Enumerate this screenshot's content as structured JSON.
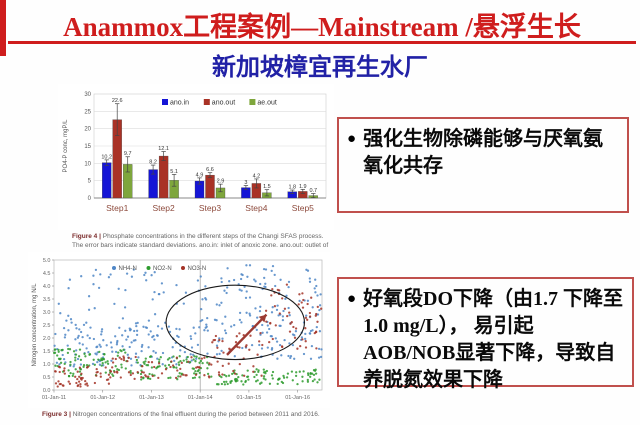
{
  "slide": {
    "title": "Anammox工程案例—Mainstream /悬浮生长",
    "subtitle": "新加坡樟宜再生水厂",
    "accent_color": "#cf1d1d",
    "subtitle_color": "#2121a6",
    "note_border_color": "#c0504d"
  },
  "bullets": [
    {
      "marker": "●",
      "text": "强化生物除磷能够与厌氧氨氧化共存"
    },
    {
      "marker": "●",
      "text": "好氧段DO下降（由1.7 下降至1.0 mg/L）， 易引起AOB/NOB显著下降，导致自养脱氮效果下降"
    }
  ],
  "chart_data": [
    {
      "type": "bar",
      "title": "",
      "xlabel": "",
      "ylabel": "PO4-P conc, mgP/L",
      "ylim": [
        0,
        30
      ],
      "yticks": [
        0,
        5,
        10,
        15,
        20,
        25,
        30
      ],
      "categories": [
        "Step1",
        "Step2",
        "Step3",
        "Step4",
        "Step5"
      ],
      "series": [
        {
          "name": "ano.in",
          "color": "#1515d6",
          "values": [
            10.2,
            8.2,
            4.9,
            3.0,
            1.8
          ],
          "errors": [
            0.8,
            1.3,
            0.9,
            0.6,
            0.5
          ]
        },
        {
          "name": "ano.out",
          "color": "#a93226",
          "values": [
            22.6,
            12.1,
            6.6,
            4.2,
            1.9
          ],
          "errors": [
            4.6,
            1.3,
            0.7,
            1.3,
            0.6
          ]
        },
        {
          "name": "ae.out",
          "color": "#7ea63c",
          "values": [
            9.7,
            5.1,
            2.9,
            1.5,
            0.7
          ],
          "errors": [
            2.2,
            1.7,
            1.1,
            0.9,
            0.6
          ]
        }
      ],
      "data_labels": [
        [
          "10.2",
          "8.2",
          "4.9",
          "3",
          "1.8"
        ],
        [
          "22.6",
          "12.1",
          "6.6",
          "4.2",
          "1.9"
        ],
        [
          "9.7",
          "5.1",
          "2.9",
          "1.5",
          "0.7"
        ]
      ],
      "legend_position": "top",
      "grid": true,
      "caption_label": "Figure 4 |",
      "caption_text": "Phosphate concentrations in the different steps of the Changi SFAS process. The error bars indicate standard deviations. ano.in: inlet of anoxic zone. ano.out: outlet of anoxic zone. ae.out: outlet of aerobic zone."
    },
    {
      "type": "scatter",
      "title": "",
      "xlabel": "",
      "ylabel": "Nitrogen concentration, mg N/L",
      "ylim": [
        0,
        5
      ],
      "yticks": [
        5.0,
        4.5,
        4.0,
        3.5,
        3.0,
        2.5,
        2.0,
        1.5,
        1.0,
        0.5,
        0.0
      ],
      "x_domain_years": [
        0,
        5.5
      ],
      "x_tick_labels": [
        "01-Jan-11",
        "01-Jan-12",
        "01-Jan-13",
        "01-Jan-14",
        "01-Jan-15",
        "01-Jan-16"
      ],
      "grid": false,
      "legend_position": "top",
      "series": [
        {
          "name": "NH4-N",
          "color": "#4e86c6",
          "clusters": [
            {
              "x0": 0.0,
              "x1": 3.0,
              "yMin": 0.9,
              "yMax": 2.6,
              "count": 150
            },
            {
              "x0": 0.0,
              "x1": 3.0,
              "yMin": 2.6,
              "yMax": 4.7,
              "count": 45
            },
            {
              "x0": 3.0,
              "x1": 5.5,
              "yMin": 1.2,
              "yMax": 3.3,
              "count": 120
            },
            {
              "x0": 3.0,
              "x1": 5.5,
              "yMin": 3.3,
              "yMax": 4.8,
              "count": 60
            }
          ]
        },
        {
          "name": "NO2-N",
          "color": "#2e9b2e",
          "clusters": [
            {
              "x0": 0.0,
              "x1": 1.5,
              "yMin": 0.5,
              "yMax": 1.6,
              "count": 85
            },
            {
              "x0": 1.5,
              "x1": 3.2,
              "yMin": 0.4,
              "yMax": 1.3,
              "count": 85
            },
            {
              "x0": 3.2,
              "x1": 5.5,
              "yMin": 0.2,
              "yMax": 0.8,
              "count": 95
            }
          ]
        },
        {
          "name": "NO3-N",
          "color": "#a33226",
          "clusters": [
            {
              "x0": 0.0,
              "x1": 1.2,
              "yMin": 0.1,
              "yMax": 0.9,
              "count": 55
            },
            {
              "x0": 1.2,
              "x1": 3.2,
              "yMin": 0.4,
              "yMax": 1.3,
              "count": 60
            },
            {
              "x0": 3.2,
              "x1": 4.3,
              "yMin": 0.5,
              "yMax": 2.2,
              "count": 40
            },
            {
              "x0": 4.3,
              "x1": 5.5,
              "yMin": 1.5,
              "yMax": 4.2,
              "count": 55
            }
          ]
        }
      ],
      "annotations": {
        "vline_year": 3,
        "ellipse": {
          "cx_year": 3.72,
          "cy_val": 2.6,
          "rx_year": 1.42,
          "ry_val": 1.43,
          "color": "#1a1a1a"
        },
        "arrow": {
          "x1_year": 3.55,
          "y1_val": 1.35,
          "x2_year": 4.36,
          "y2_val": 2.9,
          "color": "#9c3a32"
        }
      },
      "caption_label": "Figure 3 |",
      "caption_text": "Nitrogen concentrations of the final effluent during the period between 2011 and 2016."
    }
  ]
}
